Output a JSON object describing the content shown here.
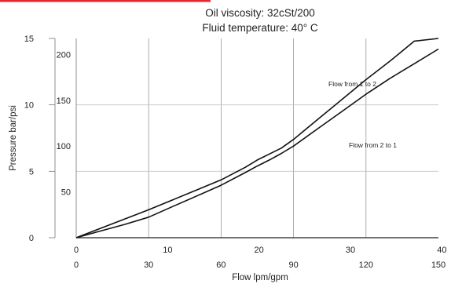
{
  "accent_color": "#e3262f",
  "chart_data": {
    "type": "line",
    "title": "Oil viscosity: 32cSt/200",
    "subtitle": "Fluid temperature: 40° C",
    "xlabel": "Flow  lpm/gpm",
    "ylabel": "Pressure  bar/psi",
    "xlim_lpm": [
      0,
      150
    ],
    "ylim_bar": [
      0,
      15
    ],
    "grid": true,
    "x_ticks_lpm": [
      "0",
      "30",
      "60",
      "90",
      "120",
      "150"
    ],
    "x_ticks_gpm": [
      "0",
      "10",
      "20",
      "30",
      "40"
    ],
    "y_ticks_bar": [
      "0",
      "5",
      "10",
      "15"
    ],
    "y_ticks_psi": [
      "50",
      "100",
      "150",
      "200"
    ],
    "series": [
      {
        "name": "Flow from 1 to 2",
        "x": [
          0,
          10,
          20,
          30,
          40,
          50,
          60,
          70,
          75,
          80,
          85,
          90,
          100,
          110,
          120,
          130,
          140,
          150
        ],
        "y": [
          0,
          0.7,
          1.4,
          2.1,
          2.85,
          3.6,
          4.35,
          5.3,
          5.85,
          6.3,
          6.75,
          7.4,
          8.9,
          10.4,
          11.9,
          13.3,
          14.8,
          16.35
        ]
      },
      {
        "name": "Flow from 2 to 1",
        "x": [
          0,
          10,
          20,
          30,
          40,
          50,
          60,
          70,
          75,
          80,
          85,
          90,
          100,
          110,
          120,
          130,
          140,
          150
        ],
        "y": [
          0,
          0.5,
          1.0,
          1.55,
          2.35,
          3.15,
          3.95,
          4.9,
          5.4,
          5.85,
          6.35,
          6.9,
          8.2,
          9.5,
          10.8,
          12.0,
          13.1,
          14.2
        ]
      }
    ]
  }
}
